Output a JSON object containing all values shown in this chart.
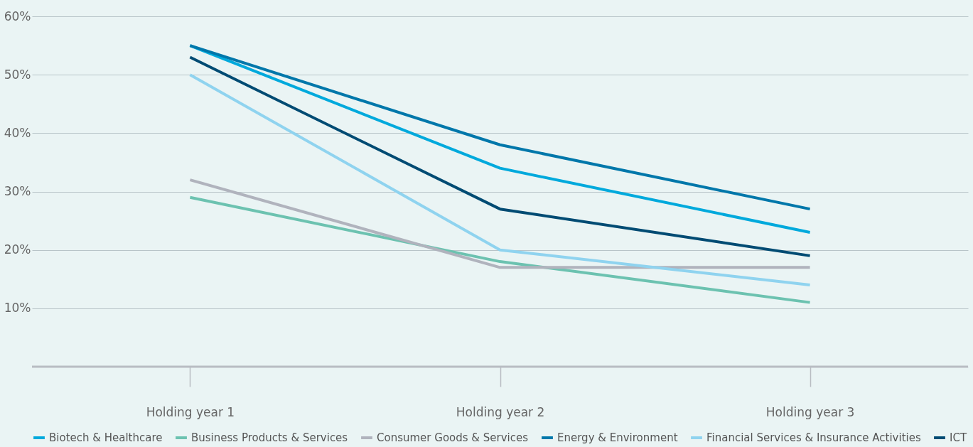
{
  "chart_data": {
    "type": "line",
    "categories": [
      "Holding year 1",
      "Holding year 2",
      "Holding year 3"
    ],
    "series": [
      {
        "name": "Biotech & Healthcare",
        "color": "#00a9dc",
        "values": [
          55,
          34,
          23
        ]
      },
      {
        "name": "Business Products & Services",
        "color": "#6cc2b0",
        "values": [
          29,
          18,
          11
        ]
      },
      {
        "name": "Consumer Goods & Services",
        "color": "#b0b3bd",
        "values": [
          32,
          17,
          17
        ]
      },
      {
        "name": "Energy & Environment",
        "color": "#0077aa",
        "values": [
          55,
          38,
          27
        ]
      },
      {
        "name": "Financial Services & Insurance Activities",
        "color": "#8fd3ef",
        "values": [
          50,
          20,
          14
        ]
      },
      {
        "name": "ICT",
        "color": "#004b73",
        "values": [
          53,
          27,
          19
        ]
      }
    ],
    "ylim": [
      0,
      60
    ],
    "yticks": [
      {
        "value": 0,
        "label": null
      },
      {
        "value": 10,
        "label": "10%"
      },
      {
        "value": 20,
        "label": "20%"
      },
      {
        "value": 30,
        "label": "30%"
      },
      {
        "value": 40,
        "label": "40%"
      },
      {
        "value": 50,
        "label": "50%"
      },
      {
        "value": 60,
        "label": "60%"
      }
    ],
    "grid": "y",
    "legend": "bottom",
    "marker": "none",
    "line_style": "solid"
  }
}
